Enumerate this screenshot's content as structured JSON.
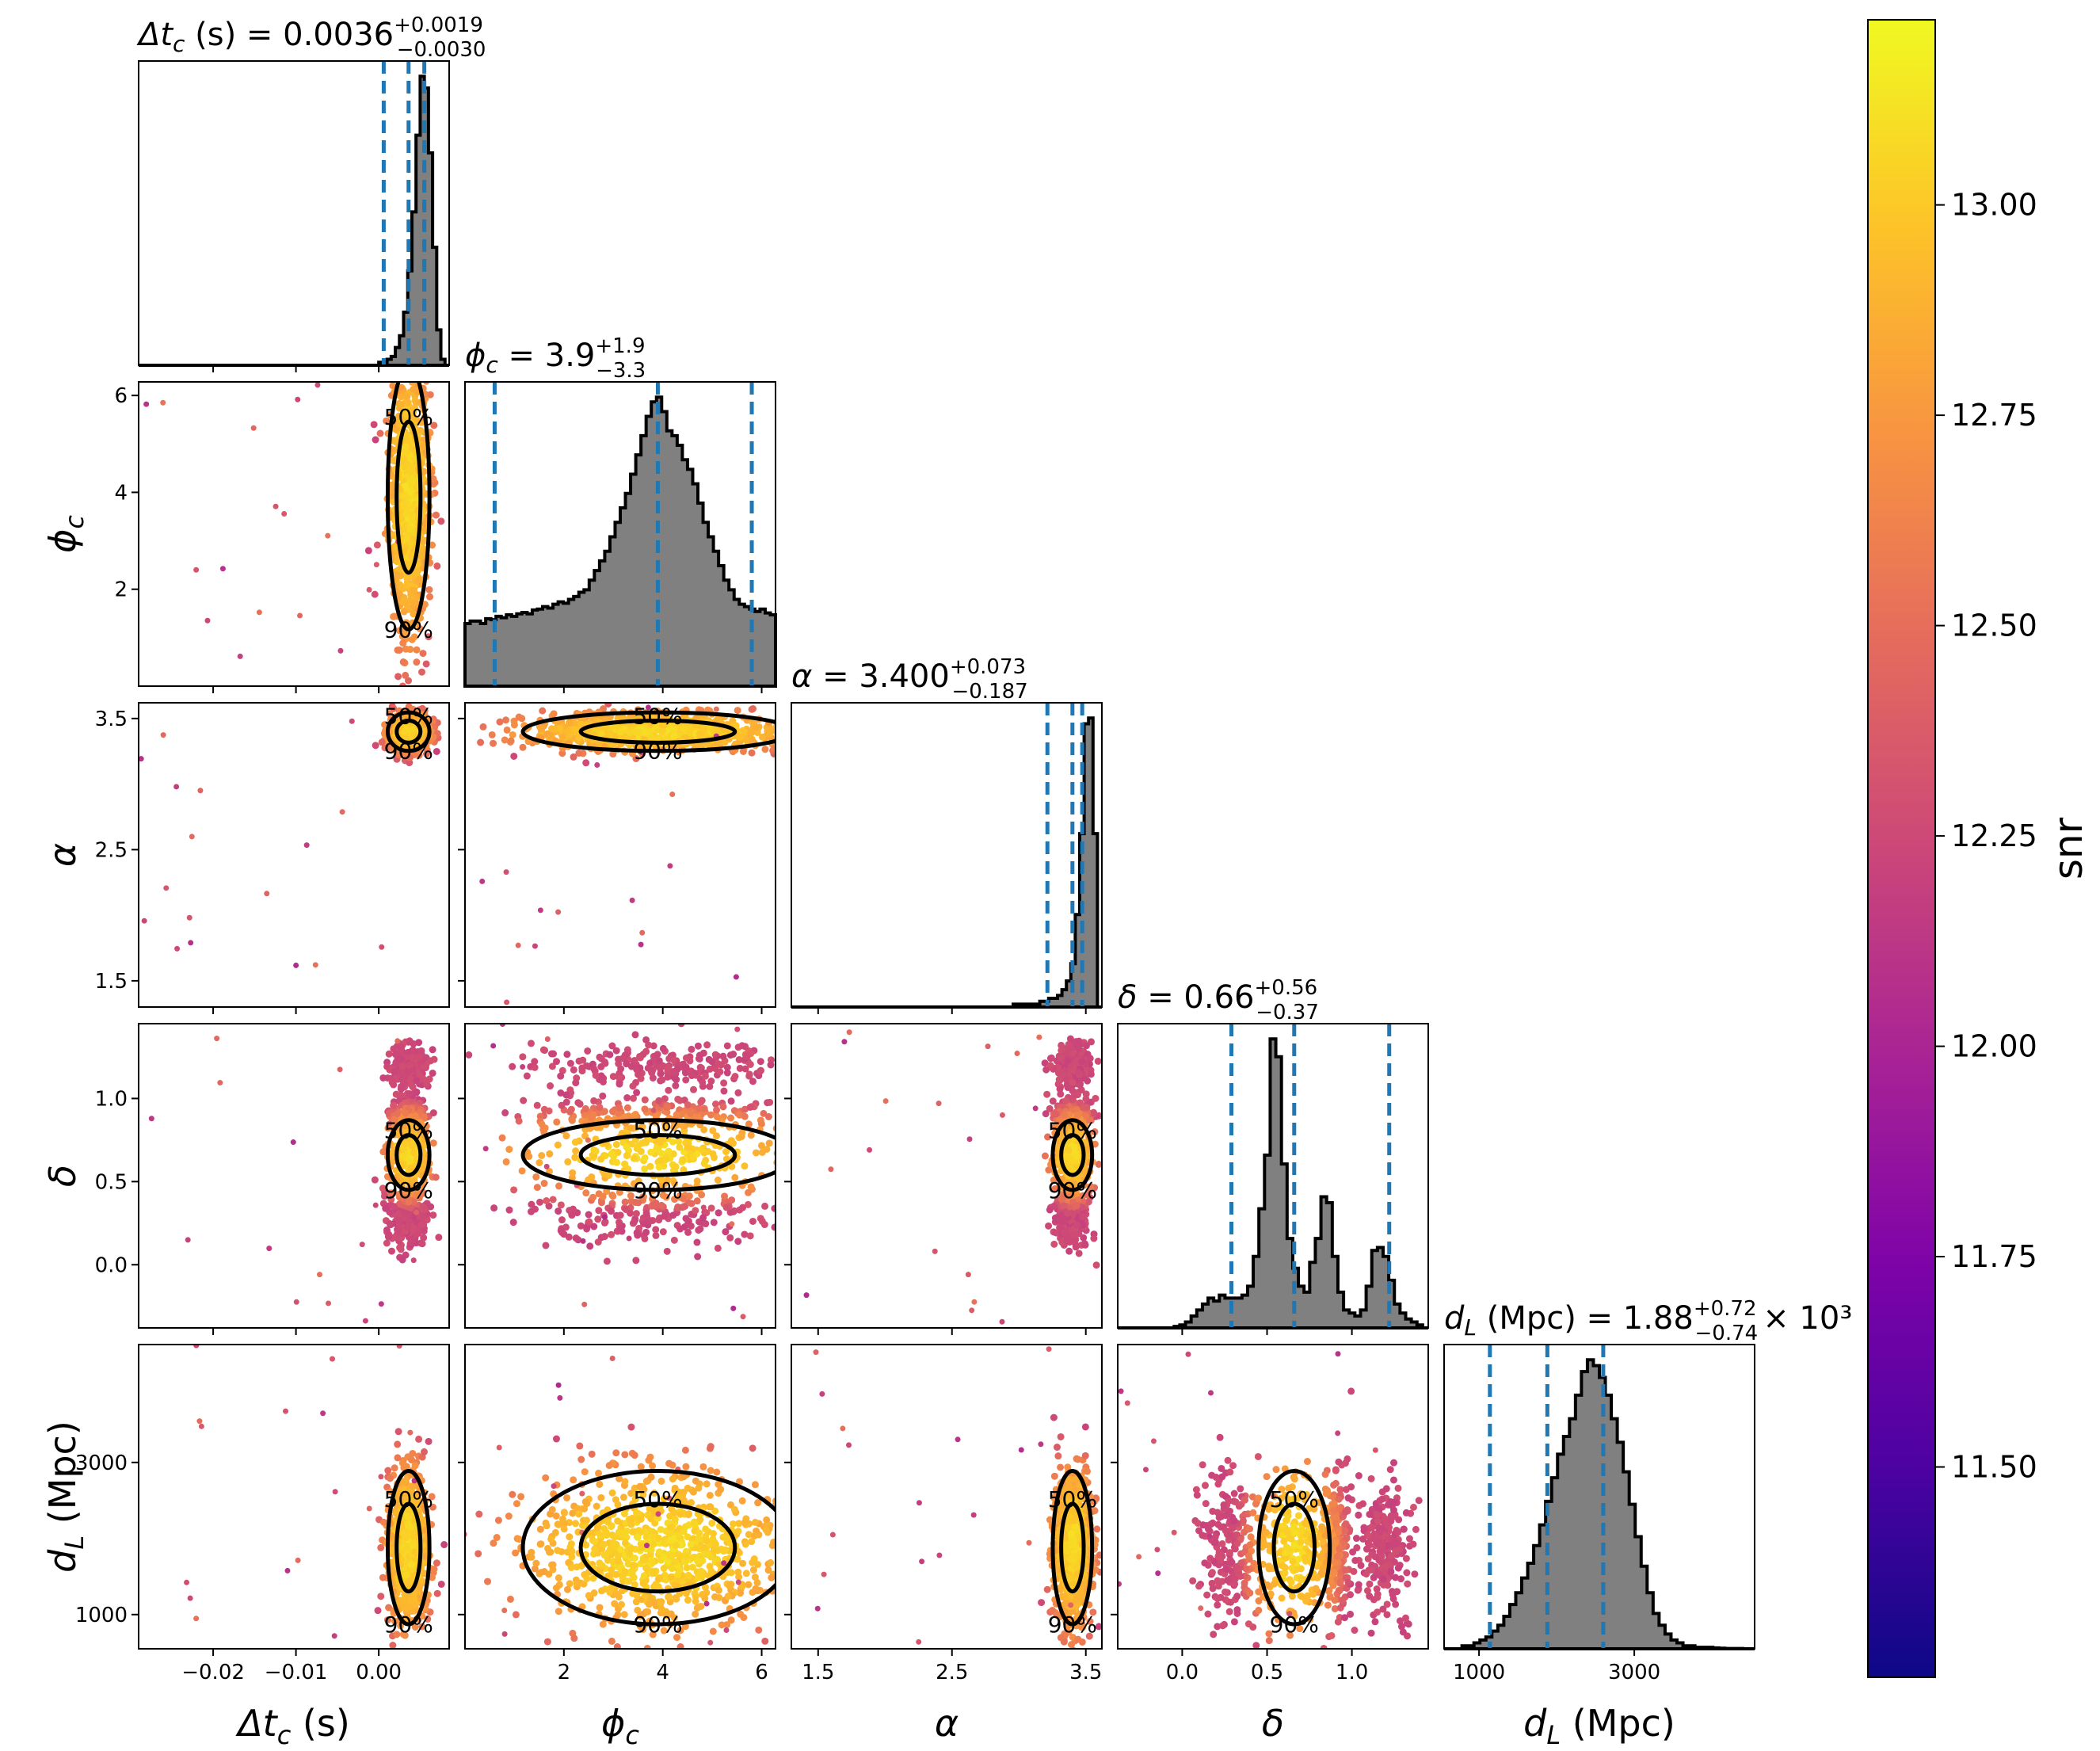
{
  "figure": {
    "type": "corner",
    "colormap": "plasma",
    "colors": {
      "histogram_fill": "#808080",
      "histogram_edge": "#000000",
      "quantile_line": "#1f77b4",
      "contour": "#000000"
    }
  },
  "chart_data": {
    "type": "corner",
    "parameters": [
      {
        "key": "dtc",
        "label": "Δt",
        "sub": "c",
        "unit": "(s)",
        "title_prefix": "Δt",
        "title_rest": " (s) = 0.0036",
        "title_sup": "+0.0019",
        "title_sub": "−0.0030",
        "title_suffix": "",
        "median": 0.0036,
        "lower_q": 0.0006,
        "upper_q": 0.0055,
        "range": [
          -0.029,
          0.0085
        ],
        "ticks": [
          -0.02,
          -0.01,
          0.0
        ],
        "tick_labels": [
          "−0.02",
          "−0.01",
          "0.00"
        ]
      },
      {
        "key": "phic",
        "label": "ϕ",
        "sub": "c",
        "unit": "",
        "title_prefix": "ϕ",
        "title_rest": " = 3.9",
        "title_sup": "+1.9",
        "title_sub": "−3.3",
        "title_suffix": "",
        "median": 3.9,
        "lower_q": 0.6,
        "upper_q": 5.8,
        "range": [
          0.0,
          6.28
        ],
        "ticks": [
          2,
          4,
          6
        ],
        "tick_labels": [
          "2",
          "4",
          "6"
        ]
      },
      {
        "key": "alpha",
        "label": "α",
        "sub": "",
        "unit": "",
        "title_prefix": "α",
        "title_rest": " = 3.400",
        "title_sup": "+0.073",
        "title_sub": "−0.187",
        "title_suffix": "",
        "median": 3.4,
        "lower_q": 3.213,
        "upper_q": 3.473,
        "range": [
          1.3,
          3.62
        ],
        "ticks": [
          1.5,
          2.5,
          3.5
        ],
        "tick_labels": [
          "1.5",
          "2.5",
          "3.5"
        ]
      },
      {
        "key": "delta",
        "label": "δ",
        "sub": "",
        "unit": "",
        "title_prefix": "δ",
        "title_rest": " = 0.66",
        "title_sup": "+0.56",
        "title_sub": "−0.37",
        "title_suffix": "",
        "median": 0.66,
        "lower_q": 0.29,
        "upper_q": 1.22,
        "range": [
          -0.38,
          1.45
        ],
        "ticks": [
          0.0,
          0.5,
          1.0
        ],
        "tick_labels": [
          "0.0",
          "0.5",
          "1.0"
        ]
      },
      {
        "key": "dl",
        "label": "d",
        "sub": "L",
        "unit": "(Mpc)",
        "title_prefix": "d",
        "title_rest": " (Mpc) = 1.88",
        "title_sup": "+0.72",
        "title_sub": "−0.74",
        "title_suffix": "× 10³",
        "median": 1880,
        "lower_q": 1140,
        "upper_q": 2600,
        "range": [
          550,
          4550
        ],
        "ticks": [
          1000,
          3000
        ],
        "tick_labels": [
          "1000",
          "3000"
        ]
      }
    ],
    "y_tick_labels": {
      "phic": {
        "ticks": [
          2,
          4,
          6
        ],
        "labels": [
          "2",
          "4",
          "6"
        ]
      },
      "alpha": {
        "ticks": [
          1.5,
          2.5,
          3.5
        ],
        "labels": [
          "1.5",
          "2.5",
          "3.5"
        ]
      },
      "delta": {
        "ticks": [
          0.0,
          0.5,
          1.0
        ],
        "labels": [
          "0.0",
          "0.5",
          "1.0"
        ]
      },
      "dl": {
        "ticks": [
          1000,
          3000
        ],
        "labels": [
          "1000",
          "3000"
        ]
      }
    },
    "histograms": {
      "dtc": [
        0,
        0,
        0,
        0,
        0,
        0,
        0,
        0,
        0,
        0,
        0,
        0,
        0,
        0,
        0,
        0,
        0,
        0,
        0,
        0,
        0,
        0,
        0,
        0,
        0,
        0,
        0,
        0,
        0,
        0,
        0,
        0,
        0,
        0,
        0,
        0,
        0,
        0,
        0,
        0,
        0,
        0,
        0,
        0,
        0,
        0,
        0,
        0,
        0,
        0,
        0,
        0,
        0,
        0,
        0,
        0,
        0,
        0,
        1,
        1,
        2,
        3,
        6,
        10,
        18,
        32,
        52,
        78,
        98,
        94,
        72,
        40,
        12,
        2,
        0
      ],
      "phic": [
        13,
        13.5,
        13.5,
        13,
        14,
        13.8,
        14.5,
        14.2,
        14.8,
        14.5,
        15,
        15.3,
        15,
        15.8,
        16,
        16.5,
        16.2,
        17,
        17.5,
        17.2,
        18,
        18.6,
        19.5,
        20,
        22,
        24,
        26,
        28,
        31,
        34,
        37,
        40,
        44,
        48,
        52,
        56,
        59,
        60,
        57,
        53,
        52,
        50,
        47,
        45,
        42,
        38,
        34,
        31,
        28,
        25,
        22,
        20,
        18,
        17,
        16.5,
        16,
        15.5,
        16,
        15.2,
        14.8
      ],
      "alpha": [
        0,
        0,
        0,
        0,
        0,
        0,
        0,
        0,
        0,
        0,
        0,
        0,
        0,
        0,
        0,
        0,
        0,
        0,
        0,
        0,
        0,
        0,
        0,
        0,
        0,
        0,
        0,
        0,
        0,
        0,
        0,
        0,
        0,
        0,
        0,
        0,
        0,
        0,
        0,
        0,
        0,
        0,
        0,
        0,
        0,
        0,
        0,
        0,
        0,
        0,
        1,
        1,
        1,
        1,
        1,
        1,
        2,
        2,
        3,
        3,
        4,
        6,
        9,
        15,
        32,
        60,
        98,
        100,
        60,
        0
      ],
      "delta": [
        0,
        0,
        0,
        0,
        0,
        0,
        0,
        0,
        0,
        0,
        0.5,
        1,
        2,
        4,
        6,
        8,
        10,
        9,
        11,
        10,
        10,
        10,
        11,
        14,
        24,
        40,
        58,
        97,
        91,
        55,
        30,
        20,
        14,
        12,
        22,
        30,
        44,
        42,
        24,
        12,
        6,
        5,
        4,
        6,
        14,
        26,
        27,
        24,
        16,
        8,
        5,
        3,
        2,
        1,
        0
      ],
      "dl": [
        0,
        0,
        0,
        1,
        1,
        2,
        3,
        4,
        6,
        8,
        11,
        15,
        19,
        24,
        29,
        35,
        42,
        50,
        58,
        66,
        72,
        78,
        86,
        94,
        98,
        96,
        92,
        86,
        78,
        70,
        60,
        49,
        38,
        28,
        19,
        12,
        8,
        5,
        3,
        2,
        1,
        1,
        0.5,
        0.5,
        0.5,
        0.3,
        0.2,
        0.1,
        0.1,
        0.1,
        0,
        0
      ]
    },
    "colorbar": {
      "label": "snr",
      "min": 11.25,
      "max": 13.22,
      "ticks": [
        11.5,
        11.75,
        12.0,
        12.25,
        12.5,
        12.75,
        13.0
      ],
      "tick_labels": [
        "11.50",
        "11.75",
        "12.00",
        "12.25",
        "12.50",
        "12.75",
        "13.00"
      ]
    },
    "contour_levels": [
      "50%",
      "90%"
    ]
  }
}
